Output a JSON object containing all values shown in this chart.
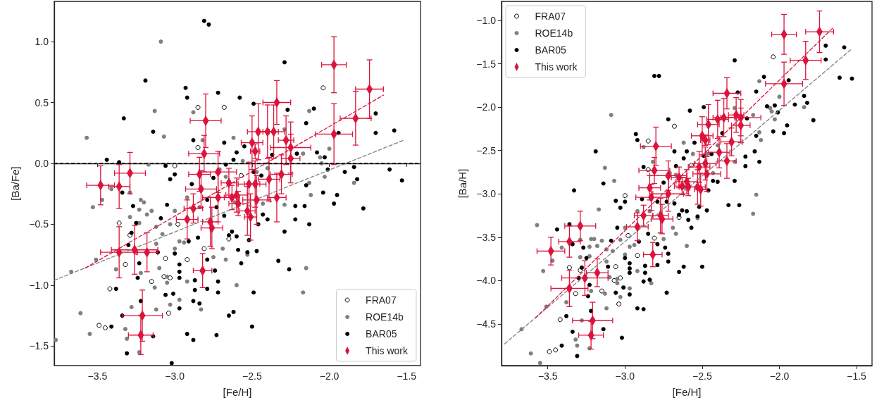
{
  "chart_data": [
    {
      "type": "scatter",
      "xlabel": "[Fe/H]",
      "ylabel": "[Ba/Fe]",
      "xlim": [
        -3.78,
        -1.41
      ],
      "ylim": [
        -1.66,
        1.33
      ],
      "grid": false,
      "legend": "bottom right",
      "xticks": [
        {
          "value": -3.5,
          "label": "−3.5"
        },
        {
          "value": -3.0,
          "label": "−3.0"
        },
        {
          "value": -2.5,
          "label": "−2.5"
        },
        {
          "value": -2.0,
          "label": "−2.0"
        },
        {
          "value": -1.5,
          "label": "−1.5"
        }
      ],
      "yticks": [
        {
          "value": -1.5,
          "label": "−1.5"
        },
        {
          "value": -1.0,
          "label": "−1.0"
        },
        {
          "value": -0.5,
          "label": "−0.5"
        },
        {
          "value": 0,
          "label": "0.0"
        },
        {
          "value": 0.5,
          "label": "0.5"
        },
        {
          "value": 1.0,
          "label": "1.0"
        }
      ],
      "ref_lines": [
        {
          "axis": "y",
          "value": 0,
          "color": "#000000",
          "line_style": "dashed"
        }
      ],
      "series": [
        {
          "name": "FRA07",
          "color": "#ffffff",
          "marker": "circle",
          "x": [
            -2.04,
            -2.85,
            -2.68,
            -2.85,
            -3.0,
            -2.57,
            -3.36,
            -3.29,
            -2.98,
            -2.65,
            -2.81,
            -3.06,
            -2.92,
            -3.32,
            -3.07,
            -3.03,
            -3.15,
            -3.42,
            -3.04,
            -3.49,
            -3.45
          ],
          "values": [
            0.62,
            0.46,
            0.46,
            0.13,
            -0.02,
            -0.1,
            -0.49,
            -0.59,
            -0.5,
            -0.62,
            -0.7,
            -0.78,
            -0.79,
            -0.83,
            -0.93,
            -0.94,
            -0.97,
            -1.03,
            -1.23,
            -1.33,
            -1.35
          ]
        },
        {
          "name": "ROE14b",
          "color": "#808080",
          "marker": "circle",
          "x": [
            -3.09,
            -3.13,
            -3.07,
            -3.57,
            -3.17,
            -3.41,
            -3.47,
            -3.53,
            -3.29,
            -3.22,
            -3.2,
            -3.23,
            -3.29,
            -3.18,
            -3.15,
            -3.23,
            -3.12,
            -3.08,
            -3.12,
            -3.0,
            -3.03,
            -2.97,
            -3.0,
            -2.94,
            -3.1,
            -3.05,
            -3.05,
            -3.13,
            -3.22,
            -3.38,
            -3.51,
            -3.67,
            -3.28,
            -3.12,
            -2.97,
            -3.03,
            -3.61,
            -3.55,
            -3.77,
            -3.32,
            -3.31,
            -3.23,
            -2.83,
            -2.92,
            -2.75,
            -2.69,
            -2.67,
            -2.6,
            -2.53,
            -2.17,
            -2.15,
            -2.88,
            -2.82,
            -2.62,
            -2.71,
            -2.67,
            -2.56,
            -2.47,
            -2.29,
            -2.17,
            -2.13,
            -2.0,
            -2.06,
            -2.05,
            -2.03,
            -2.13,
            -2.12,
            -1.84,
            -2.4,
            -2.29,
            -2.43,
            -2.61,
            -2.84,
            -2.92
          ],
          "values": [
            1.0,
            0.43,
            0.22,
            0.21,
            -0.01,
            -0.21,
            -0.3,
            -0.36,
            -0.24,
            -0.3,
            -0.32,
            -0.38,
            -0.44,
            -0.42,
            -0.39,
            -0.49,
            -0.52,
            -0.58,
            -0.66,
            -0.39,
            -0.5,
            -0.64,
            -0.7,
            -0.65,
            -0.86,
            -0.93,
            -0.98,
            -1.02,
            -0.9,
            -0.87,
            -0.79,
            -0.89,
            -1.18,
            -1.2,
            -1.12,
            -1.16,
            -1.23,
            -1.4,
            -1.45,
            -1.36,
            -1.44,
            -1.55,
            -1.2,
            -0.97,
            -0.77,
            -0.7,
            -0.79,
            -1.0,
            -0.75,
            -1.06,
            -0.86,
            0.42,
            0.19,
            0.21,
            -0.05,
            -0.11,
            0.02,
            -0.07,
            0.28,
            0.08,
            0.43,
            0.12,
            0.05,
            0.0,
            -0.11,
            -0.16,
            -0.26,
            -0.16,
            -0.04,
            -0.34,
            -0.33,
            -0.32,
            -0.36,
            -0.28
          ]
        },
        {
          "name": "BAR05",
          "color": "#000000",
          "marker": "circle",
          "x": [
            -2.81,
            -2.78,
            -2.29,
            -3.19,
            -2.93,
            -2.92,
            -3.33,
            -3.14,
            -2.72,
            -2.58,
            -2.49,
            -2.27,
            -2.1,
            -2.15,
            -1.7,
            -1.58,
            -1.7,
            -1.94,
            -2.88,
            -2.68,
            -2.55,
            -2.6,
            -3.44,
            -3.36,
            -3.34,
            -3.06,
            -3.03,
            -3.0,
            -2.89,
            -2.75,
            -2.67,
            -2.62,
            -2.49,
            -2.44,
            -2.37,
            -2.21,
            -2.08,
            -2.03,
            -2.01,
            -1.9,
            -1.84,
            -1.82,
            -1.61,
            -1.53,
            -2.04,
            -1.95,
            -1.97,
            -1.78,
            -2.15,
            -2.22,
            -2.16,
            -2.22,
            -2.13,
            -2.29,
            -2.33,
            -2.26,
            -2.4,
            -2.43,
            -2.46,
            -2.52,
            -2.53,
            -2.47,
            -2.57,
            -2.59,
            -2.65,
            -2.63,
            -2.6,
            -2.68,
            -2.73,
            -2.79,
            -3.09,
            -3.05,
            -3.27,
            -3.25,
            -3.28,
            -3.3,
            -3.11,
            -3.0,
            -2.97,
            -2.97,
            -2.91,
            -2.85,
            -2.79,
            -2.74,
            -2.72,
            -2.87,
            -2.97,
            -3.06,
            -3.01,
            -2.97,
            -2.88,
            -2.84,
            -2.87,
            -2.79,
            -2.72,
            -2.49,
            -2.62,
            -2.65,
            -2.5,
            -2.73,
            -2.92,
            -2.88,
            -3.31,
            -3.38,
            -3.24,
            -3.23,
            -3.41,
            -3.34,
            -3.22,
            -3.14,
            -3.02
          ],
          "values": [
            1.17,
            1.14,
            0.83,
            0.68,
            0.62,
            0.54,
            0.37,
            0.26,
            0.58,
            0.54,
            0.49,
            0.44,
            0.45,
            0.33,
            0.41,
            0.27,
            0.25,
            0.25,
            0.19,
            0.17,
            0.14,
            0.09,
            0.03,
            0.01,
            -0.24,
            -0.02,
            -0.13,
            -0.09,
            -0.17,
            -0.12,
            -0.01,
            0.03,
            -0.07,
            -0.1,
            0.07,
            0.08,
            0.09,
            0.05,
            -0.05,
            -0.07,
            -0.03,
            -0.13,
            -0.05,
            -0.14,
            -0.24,
            -0.26,
            -0.33,
            -0.37,
            -0.18,
            -0.35,
            -0.35,
            -0.46,
            -0.5,
            -0.56,
            -0.8,
            -0.87,
            -0.46,
            -0.42,
            -0.5,
            -0.63,
            -0.73,
            -0.72,
            -0.82,
            -0.71,
            -0.59,
            -0.56,
            -0.6,
            -0.43,
            -0.36,
            -0.3,
            -0.45,
            -0.34,
            -0.35,
            -0.49,
            -0.57,
            -0.67,
            -0.73,
            -0.74,
            -0.83,
            -0.89,
            -0.64,
            -0.61,
            -0.79,
            -0.88,
            -0.97,
            -0.96,
            -0.94,
            -1.08,
            -1.07,
            -1.19,
            -1.13,
            -1.15,
            -1.04,
            -1.03,
            -1.06,
            -1.06,
            -1.22,
            -1.25,
            -1.34,
            -1.41,
            -1.4,
            -1.45,
            -1.56,
            -1.03,
            -0.94,
            -0.82,
            -1.34,
            -1.25,
            -1.13,
            -1.42,
            -1.64
          ]
        },
        {
          "type": "line",
          "color": "#808080",
          "line_style": "dashed",
          "x": [
            -3.78,
            -1.52
          ],
          "values": [
            -0.96,
            0.19
          ]
        },
        {
          "type": "line",
          "color": "#dc143c",
          "line_style": "dashed",
          "x": [
            -3.58,
            -1.65
          ],
          "values": [
            -0.86,
            0.56
          ]
        },
        {
          "name": "This work",
          "color": "#dc143c",
          "marker": "diamond",
          "x": [
            -3.48,
            -3.36,
            -3.29,
            -3.36,
            -3.26,
            -3.18,
            -3.21,
            -3.22,
            -2.8,
            -2.81,
            -2.84,
            -2.83,
            -2.72,
            -2.88,
            -2.92,
            -2.77,
            -2.76,
            -2.82,
            -2.72,
            -2.65,
            -2.63,
            -2.6,
            -2.59,
            -2.52,
            -2.53,
            -2.51,
            -2.48,
            -2.47,
            -2.5,
            -2.48,
            -2.46,
            -2.4,
            -2.36,
            -2.34,
            -2.39,
            -2.34,
            -2.31,
            -2.28,
            -2.25,
            -2.25,
            -1.97,
            -1.97,
            -1.83,
            -1.74
          ],
          "values": [
            -0.18,
            -0.19,
            -0.08,
            -0.73,
            -0.71,
            -0.73,
            -1.25,
            -1.41,
            0.35,
            0.08,
            -0.09,
            -0.21,
            -0.07,
            -0.37,
            -0.46,
            -0.48,
            -0.53,
            -0.88,
            -0.28,
            -0.16,
            -0.28,
            -0.26,
            -0.33,
            -0.17,
            -0.39,
            -0.44,
            -0.17,
            -0.3,
            0.17,
            0.1,
            0.26,
            0.26,
            0.26,
            0.5,
            -0.13,
            -0.28,
            -0.09,
            0.19,
            0.13,
            0.04,
            0.81,
            0.24,
            0.37,
            0.61
          ],
          "xerrors": [
            0.09,
            0.07,
            0.1,
            0.12,
            0.15,
            0.07,
            0.13,
            0.08,
            0.1,
            0.1,
            0.07,
            0.1,
            0.12,
            0.06,
            0.07,
            0.05,
            0.07,
            0.06,
            0.1,
            0.05,
            0.05,
            0.07,
            0.06,
            0.07,
            0.05,
            0.04,
            0.07,
            0.09,
            0.07,
            0.03,
            0.07,
            0.07,
            0.07,
            0.09,
            0.07,
            0.06,
            0.07,
            0.05,
            0.13,
            0.06,
            0.08,
            0.12,
            0.1,
            0.09
          ],
          "errors": [
            0.16,
            0.18,
            0.17,
            0.21,
            0.2,
            0.16,
            0.21,
            0.16,
            0.22,
            0.15,
            0.14,
            0.15,
            0.17,
            0.12,
            0.16,
            0.2,
            0.17,
            0.14,
            0.2,
            0.12,
            0.1,
            0.14,
            0.1,
            0.18,
            0.2,
            0.19,
            0.19,
            0.2,
            0.22,
            0.06,
            0.23,
            0.22,
            0.22,
            0.18,
            0.18,
            0.2,
            0.16,
            0.2,
            0.21,
            0.2,
            0.23,
            0.25,
            0.22,
            0.24
          ]
        }
      ]
    },
    {
      "type": "scatter",
      "xlabel": "[Fe/H]",
      "ylabel": "[Ba/H]",
      "xlim": [
        -3.8,
        -1.4
      ],
      "ylim": [
        -4.98,
        -0.78
      ],
      "grid": false,
      "legend": "top left",
      "xticks": [
        {
          "value": -3.5,
          "label": "−3.5"
        },
        {
          "value": -3.0,
          "label": "−3.0"
        },
        {
          "value": -2.5,
          "label": "−2.5"
        },
        {
          "value": -2.0,
          "label": "−2.0"
        },
        {
          "value": -1.5,
          "label": "−1.5"
        }
      ],
      "yticks": [
        {
          "value": -4.5,
          "label": "−4.5"
        },
        {
          "value": -4.0,
          "label": "−4.0"
        },
        {
          "value": -3.5,
          "label": "−3.5"
        },
        {
          "value": -3.0,
          "label": "−3.0"
        },
        {
          "value": -2.5,
          "label": "−2.5"
        },
        {
          "value": -2.0,
          "label": "−2.0"
        },
        {
          "value": -1.5,
          "label": "−1.5"
        },
        {
          "value": -1.0,
          "label": "−1.0"
        }
      ],
      "series": [
        {
          "name": "FRA07",
          "color": "#ffffff",
          "marker": "circle",
          "x": [
            -2.04,
            -2.85,
            -2.68,
            -2.85,
            -3.0,
            -2.57,
            -3.36,
            -3.29,
            -2.98,
            -2.65,
            -2.81,
            -3.06,
            -2.92,
            -3.32,
            -3.07,
            -3.03,
            -3.15,
            -3.42,
            -3.04,
            -3.49,
            -3.45
          ],
          "values": [
            -1.42,
            -2.39,
            -2.22,
            -2.72,
            -3.02,
            -2.67,
            -3.85,
            -3.88,
            -3.48,
            -3.27,
            -3.51,
            -3.84,
            -3.71,
            -4.15,
            -4.0,
            -3.97,
            -4.12,
            -4.45,
            -4.27,
            -4.82,
            -4.8
          ]
        },
        {
          "name": "ROE14b",
          "color": "#808080",
          "marker": "circle",
          "x": [
            -3.09,
            -3.13,
            -3.07,
            -3.57,
            -3.17,
            -3.41,
            -3.47,
            -3.53,
            -3.29,
            -3.22,
            -3.2,
            -3.23,
            -3.29,
            -3.18,
            -3.15,
            -3.23,
            -3.12,
            -3.08,
            -3.12,
            -3.0,
            -3.03,
            -2.97,
            -3.0,
            -2.94,
            -3.1,
            -3.05,
            -3.05,
            -3.13,
            -3.22,
            -3.38,
            -3.51,
            -3.67,
            -3.28,
            -3.12,
            -2.97,
            -3.03,
            -3.61,
            -3.55,
            -3.32,
            -3.31,
            -3.23,
            -2.83,
            -2.92,
            -2.75,
            -2.69,
            -2.67,
            -2.6,
            -2.53,
            -2.17,
            -2.15,
            -2.88,
            -2.82,
            -2.62,
            -2.71,
            -2.67,
            -2.56,
            -2.47,
            -2.29,
            -2.17,
            -2.13,
            -2.0,
            -2.06,
            -2.05,
            -2.03,
            -2.13,
            -2.12,
            -1.84,
            -2.4,
            -2.29,
            -2.43,
            -2.61,
            -2.84,
            -2.92
          ],
          "values": [
            -2.09,
            -2.7,
            -2.85,
            -3.36,
            -3.18,
            -3.62,
            -3.77,
            -3.89,
            -3.53,
            -3.52,
            -3.52,
            -3.61,
            -3.73,
            -3.6,
            -3.54,
            -3.72,
            -3.64,
            -3.66,
            -3.78,
            -3.39,
            -3.53,
            -3.61,
            -3.7,
            -3.59,
            -3.96,
            -3.98,
            -4.03,
            -4.15,
            -4.12,
            -4.25,
            -4.3,
            -4.56,
            -4.46,
            -4.32,
            -4.09,
            -4.19,
            -4.84,
            -4.95,
            -4.68,
            -4.75,
            -4.78,
            -4.03,
            -3.89,
            -3.52,
            -3.39,
            -3.46,
            -3.6,
            -3.28,
            -3.23,
            -3.01,
            -2.46,
            -2.63,
            -2.41,
            -2.76,
            -2.78,
            -2.54,
            -2.54,
            -2.01,
            -2.09,
            -1.7,
            -1.88,
            -2.01,
            -2.05,
            -2.14,
            -2.29,
            -2.38,
            -2.0,
            -2.44,
            -2.63,
            -2.76,
            -2.93,
            -3.2,
            -3.2
          ]
        },
        {
          "name": "BAR05",
          "color": "#000000",
          "marker": "circle",
          "x": [
            -2.81,
            -2.78,
            -2.29,
            -3.19,
            -2.93,
            -2.92,
            -3.33,
            -3.14,
            -2.72,
            -2.58,
            -2.49,
            -2.27,
            -2.1,
            -2.15,
            -1.7,
            -1.58,
            -1.7,
            -1.94,
            -2.88,
            -2.68,
            -2.55,
            -2.6,
            -3.44,
            -3.36,
            -3.34,
            -3.06,
            -3.03,
            -3.0,
            -2.89,
            -2.75,
            -2.67,
            -2.62,
            -2.49,
            -2.44,
            -2.37,
            -2.21,
            -2.08,
            -2.03,
            -2.01,
            -1.9,
            -1.84,
            -1.82,
            -1.61,
            -1.53,
            -2.04,
            -1.95,
            -1.97,
            -1.78,
            -2.15,
            -2.22,
            -2.16,
            -2.22,
            -2.13,
            -2.29,
            -2.33,
            -2.26,
            -2.4,
            -2.43,
            -2.46,
            -2.52,
            -2.53,
            -2.47,
            -2.57,
            -2.59,
            -2.65,
            -2.63,
            -2.6,
            -2.68,
            -2.73,
            -2.79,
            -3.09,
            -3.05,
            -3.27,
            -3.25,
            -3.28,
            -3.3,
            -3.11,
            -3.0,
            -2.97,
            -2.97,
            -2.91,
            -2.85,
            -2.79,
            -2.74,
            -2.72,
            -2.87,
            -2.97,
            -3.06,
            -3.01,
            -2.97,
            -2.88,
            -2.84,
            -2.87,
            -2.79,
            -2.72,
            -2.49,
            -2.62,
            -2.65,
            -2.5,
            -2.73,
            -2.92,
            -2.88,
            -3.31,
            -3.38,
            -3.24,
            -3.23,
            -3.41,
            -3.34,
            -3.22,
            -3.14,
            -3.02
          ],
          "values": [
            -1.64,
            -1.64,
            -1.46,
            -2.51,
            -2.31,
            -2.38,
            -2.96,
            -2.88,
            -2.14,
            -2.04,
            -2.0,
            -1.83,
            -1.65,
            -1.82,
            -1.29,
            -1.31,
            -1.45,
            -1.69,
            -2.69,
            -2.51,
            -2.41,
            -2.51,
            -3.41,
            -3.35,
            -3.58,
            -3.08,
            -3.16,
            -3.09,
            -3.06,
            -2.87,
            -2.68,
            -2.59,
            -2.56,
            -2.54,
            -2.3,
            -2.13,
            -1.99,
            -1.98,
            -2.06,
            -1.97,
            -1.87,
            -1.95,
            -1.66,
            -1.67,
            -2.28,
            -2.21,
            -2.3,
            -2.15,
            -2.33,
            -2.57,
            -2.51,
            -2.68,
            -2.63,
            -2.85,
            -3.13,
            -3.13,
            -2.86,
            -2.85,
            -2.96,
            -3.15,
            -3.26,
            -3.19,
            -3.39,
            -3.3,
            -3.24,
            -3.19,
            -3.2,
            -3.11,
            -3.09,
            -3.09,
            -3.54,
            -3.39,
            -3.62,
            -3.74,
            -3.85,
            -3.97,
            -3.84,
            -3.74,
            -3.8,
            -3.86,
            -3.55,
            -3.46,
            -3.58,
            -3.62,
            -3.69,
            -3.83,
            -3.91,
            -4.14,
            -4.08,
            -4.16,
            -4.01,
            -3.99,
            -3.91,
            -3.82,
            -3.78,
            -3.55,
            -3.84,
            -3.9,
            -3.84,
            -4.14,
            -4.32,
            -4.33,
            -4.87,
            -4.41,
            -4.18,
            -4.05,
            -4.75,
            -4.59,
            -4.35,
            -4.56,
            -4.66
          ]
        },
        {
          "type": "line",
          "color": "#808080",
          "line_style": "dashed",
          "x": [
            -3.78,
            -1.54
          ],
          "values": [
            -4.73,
            -1.34
          ]
        },
        {
          "type": "line",
          "color": "#dc143c",
          "line_style": "dashed",
          "x": [
            -3.58,
            -1.65
          ],
          "values": [
            -4.43,
            -1.08
          ]
        },
        {
          "name": "This work",
          "color": "#dc143c",
          "marker": "diamond",
          "x": [
            -3.48,
            -3.36,
            -3.29,
            -3.36,
            -3.26,
            -3.18,
            -3.21,
            -3.22,
            -2.8,
            -2.81,
            -2.84,
            -2.83,
            -2.72,
            -2.88,
            -2.92,
            -2.77,
            -2.76,
            -2.82,
            -2.72,
            -2.65,
            -2.63,
            -2.6,
            -2.59,
            -2.52,
            -2.53,
            -2.51,
            -2.48,
            -2.47,
            -2.5,
            -2.48,
            -2.46,
            -2.4,
            -2.36,
            -2.34,
            -2.39,
            -2.34,
            -2.31,
            -2.28,
            -2.25,
            -2.25,
            -1.97,
            -1.97,
            -1.83,
            -1.74
          ],
          "values": [
            -3.66,
            -3.55,
            -3.37,
            -4.09,
            -3.97,
            -3.91,
            -4.46,
            -4.63,
            -2.45,
            -2.73,
            -2.93,
            -3.04,
            -2.79,
            -3.25,
            -3.38,
            -3.25,
            -3.29,
            -3.7,
            -3.0,
            -2.81,
            -2.91,
            -2.86,
            -2.92,
            -2.69,
            -2.92,
            -2.95,
            -2.65,
            -2.77,
            -2.33,
            -2.38,
            -2.2,
            -2.14,
            -2.12,
            -1.84,
            -2.52,
            -2.62,
            -2.4,
            -2.09,
            -2.12,
            -2.21,
            -1.16,
            -1.73,
            -1.46,
            -1.13
          ],
          "xerrors": [
            0.09,
            0.07,
            0.1,
            0.12,
            0.15,
            0.07,
            0.13,
            0.08,
            0.1,
            0.1,
            0.07,
            0.1,
            0.12,
            0.06,
            0.07,
            0.05,
            0.07,
            0.06,
            0.1,
            0.05,
            0.05,
            0.07,
            0.06,
            0.07,
            0.05,
            0.04,
            0.07,
            0.09,
            0.07,
            0.03,
            0.07,
            0.07,
            0.07,
            0.09,
            0.07,
            0.06,
            0.07,
            0.05,
            0.13,
            0.06,
            0.08,
            0.12,
            0.1,
            0.09
          ],
          "errors": [
            0.16,
            0.18,
            0.17,
            0.21,
            0.2,
            0.16,
            0.21,
            0.16,
            0.22,
            0.15,
            0.14,
            0.15,
            0.17,
            0.12,
            0.16,
            0.2,
            0.17,
            0.14,
            0.2,
            0.12,
            0.1,
            0.14,
            0.1,
            0.18,
            0.2,
            0.19,
            0.19,
            0.2,
            0.22,
            0.06,
            0.23,
            0.22,
            0.22,
            0.18,
            0.18,
            0.2,
            0.16,
            0.2,
            0.21,
            0.2,
            0.23,
            0.25,
            0.22,
            0.24
          ]
        }
      ]
    }
  ]
}
